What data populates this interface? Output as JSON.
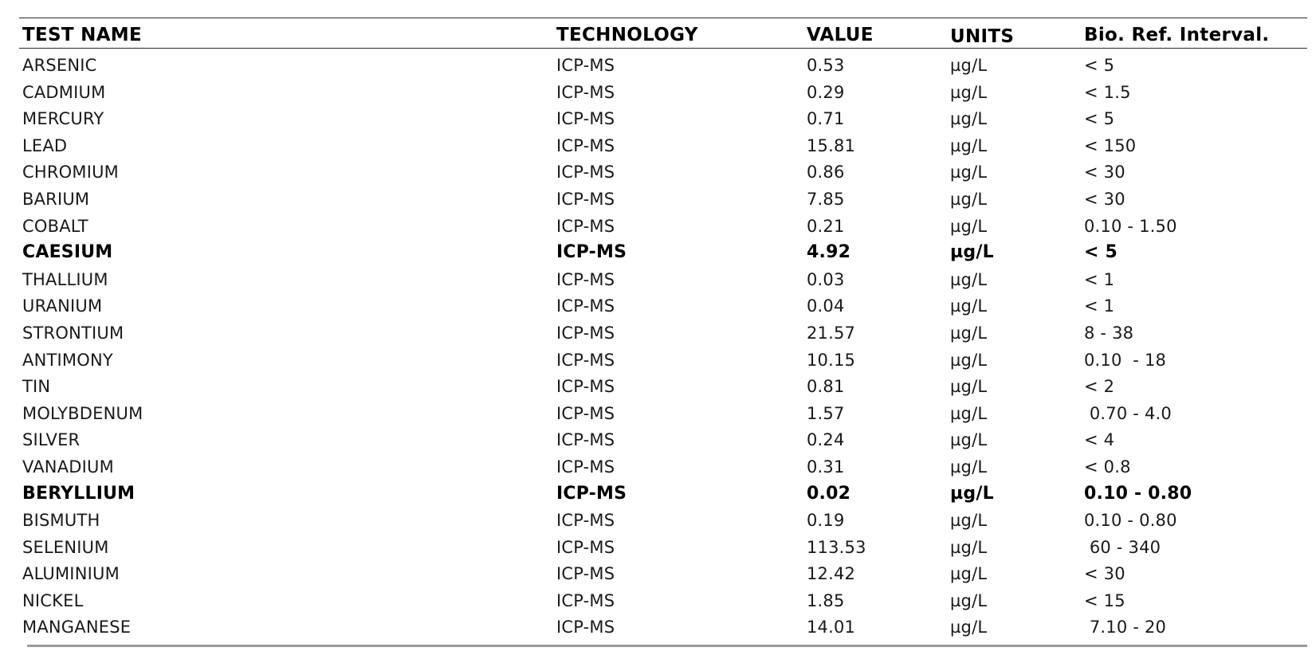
{
  "columns": {
    "test_name": "TEST NAME",
    "technology": "TECHNOLOGY",
    "value": "VALUE",
    "units": "UNITS",
    "bio_ref": "Bio. Ref. Interval."
  },
  "rows": [
    {
      "name": "ARSENIC",
      "technology": "ICP-MS",
      "value": "0.53",
      "units": "µg/L",
      "ref": "< 5",
      "emphasis": false
    },
    {
      "name": "CADMIUM",
      "technology": "ICP-MS",
      "value": "0.29",
      "units": "µg/L",
      "ref": "< 1.5",
      "emphasis": false
    },
    {
      "name": "MERCURY",
      "technology": "ICP-MS",
      "value": "0.71",
      "units": "µg/L",
      "ref": "< 5",
      "emphasis": false
    },
    {
      "name": "LEAD",
      "technology": "ICP-MS",
      "value": "15.81",
      "units": "µg/L",
      "ref": "< 150",
      "emphasis": false
    },
    {
      "name": "CHROMIUM",
      "technology": "ICP-MS",
      "value": "0.86",
      "units": "µg/L",
      "ref": "< 30",
      "emphasis": false
    },
    {
      "name": "BARIUM",
      "technology": "ICP-MS",
      "value": "7.85",
      "units": "µg/L",
      "ref": "< 30",
      "emphasis": false
    },
    {
      "name": "COBALT",
      "technology": "ICP-MS",
      "value": "0.21",
      "units": "µg/L",
      "ref": "0.10 - 1.50",
      "emphasis": false
    },
    {
      "name": "CAESIUM",
      "technology": "ICP-MS",
      "value": "4.92",
      "units": "µg/L",
      "ref": "< 5",
      "emphasis": true
    },
    {
      "name": "THALLIUM",
      "technology": "ICP-MS",
      "value": "0.03",
      "units": "µg/L",
      "ref": "< 1",
      "emphasis": false
    },
    {
      "name": "URANIUM",
      "technology": "ICP-MS",
      "value": "0.04",
      "units": "µg/L",
      "ref": "< 1",
      "emphasis": false
    },
    {
      "name": "STRONTIUM",
      "technology": "ICP-MS",
      "value": "21.57",
      "units": "µg/L",
      "ref": "8 - 38",
      "emphasis": false
    },
    {
      "name": "ANTIMONY",
      "technology": "ICP-MS",
      "value": "10.15",
      "units": "µg/L",
      "ref": "0.10  - 18",
      "emphasis": false
    },
    {
      "name": "TIN",
      "technology": "ICP-MS",
      "value": "0.81",
      "units": "µg/L",
      "ref": "< 2",
      "emphasis": false
    },
    {
      "name": "MOLYBDENUM",
      "technology": "ICP-MS",
      "value": "1.57",
      "units": "µg/L",
      "ref": " 0.70 - 4.0",
      "emphasis": false
    },
    {
      "name": "SILVER",
      "technology": "ICP-MS",
      "value": "0.24",
      "units": "µg/L",
      "ref": "< 4",
      "emphasis": false
    },
    {
      "name": "VANADIUM",
      "technology": "ICP-MS",
      "value": "0.31",
      "units": "µg/L",
      "ref": "< 0.8",
      "emphasis": false
    },
    {
      "name": "BERYLLIUM",
      "technology": "ICP-MS",
      "value": "0.02",
      "units": "µg/L",
      "ref": "0.10 - 0.80",
      "emphasis": true
    },
    {
      "name": "BISMUTH",
      "technology": "ICP-MS",
      "value": "0.19",
      "units": "µg/L",
      "ref": "0.10 - 0.80",
      "emphasis": false
    },
    {
      "name": "SELENIUM",
      "technology": "ICP-MS",
      "value": "113.53",
      "units": "µg/L",
      "ref": " 60 - 340",
      "emphasis": false
    },
    {
      "name": "ALUMINIUM",
      "technology": "ICP-MS",
      "value": "12.42",
      "units": "µg/L",
      "ref": "< 30",
      "emphasis": false
    },
    {
      "name": "NICKEL",
      "technology": "ICP-MS",
      "value": "1.85",
      "units": "µg/L",
      "ref": "< 15",
      "emphasis": false
    },
    {
      "name": "MANGANESE",
      "technology": "ICP-MS",
      "value": "14.01",
      "units": "µg/L",
      "ref": " 7.10 - 20",
      "emphasis": false
    }
  ]
}
